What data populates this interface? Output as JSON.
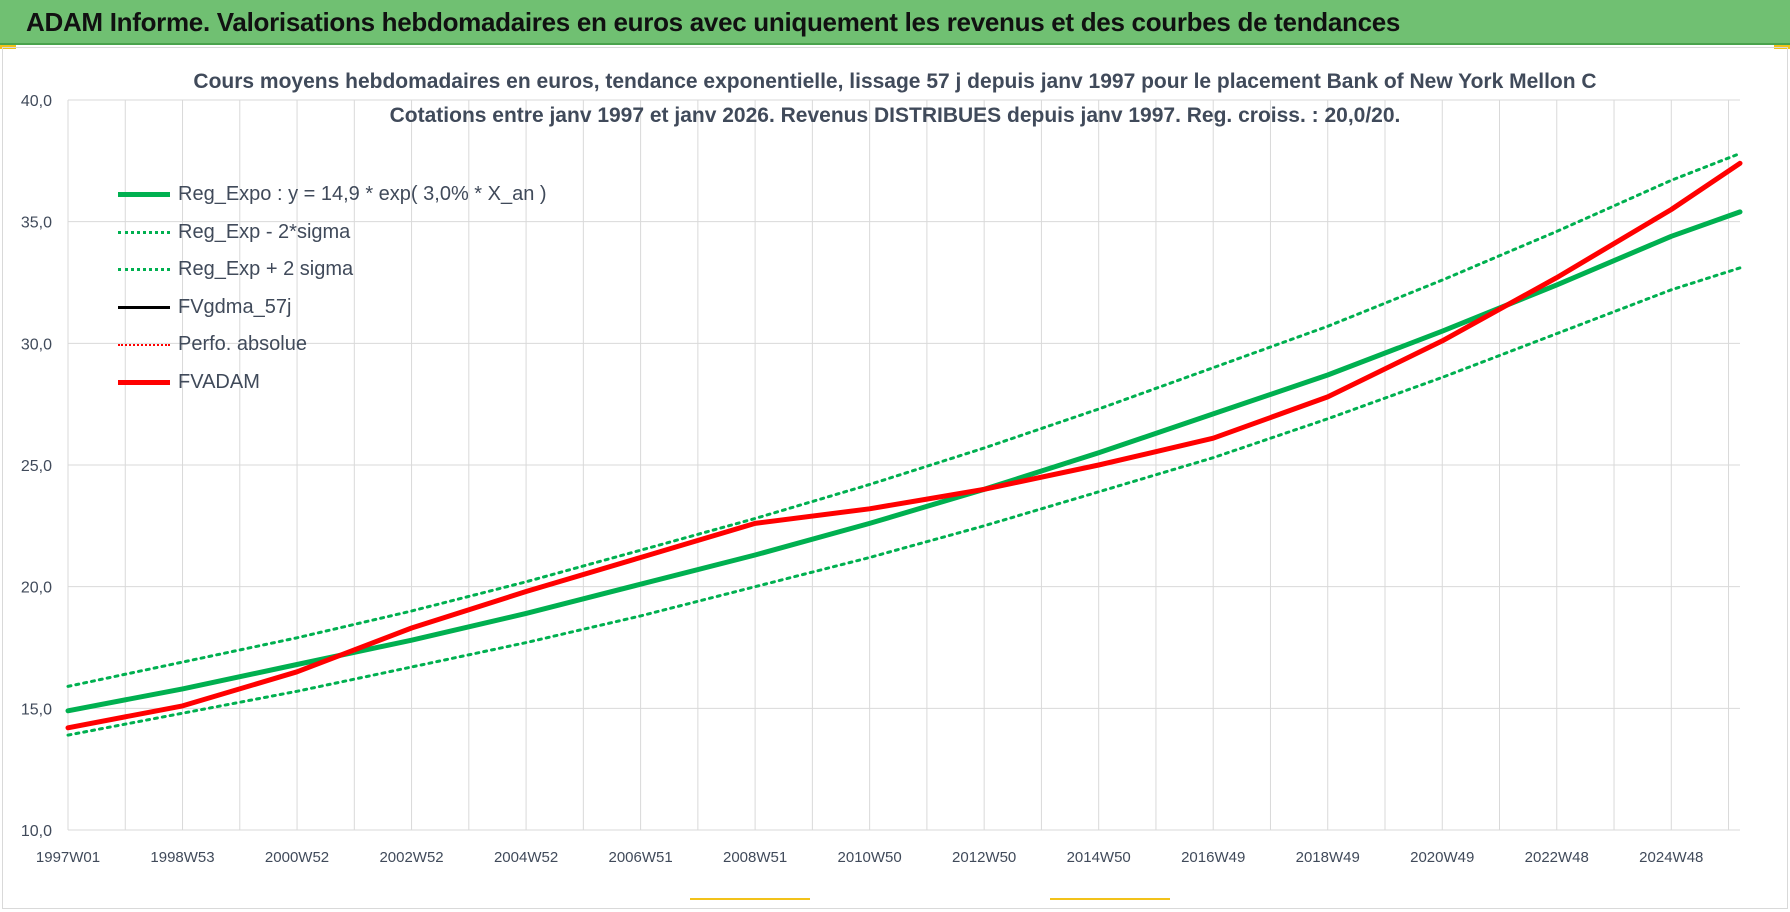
{
  "banner": {
    "title": "ADAM Informe. Valorisations hebdomadaires en euros avec uniquement les revenus et des courbes de tendances"
  },
  "colors": {
    "banner_bg": "#70c072",
    "accent_gold": "#f2c21a",
    "trend_green": "#00b050",
    "adam_red": "#ff0000",
    "black": "#000000",
    "grid": "#d9d9d9",
    "text": "#404a5a"
  },
  "chart_data": {
    "type": "line",
    "title": "Cours moyens hebdomadaires en euros, tendance exponentielle, lissage 57 j depuis janv 1997 pour le placement Bank of New York Mellon C",
    "subtitle": "Cotations entre janv 1997 et janv 2026. Revenus DISTRIBUES depuis janv 1997. Reg. croiss. : 20,0/20.",
    "xlabel": "",
    "ylabel": "",
    "ylim": [
      10,
      40
    ],
    "yticks": [
      "10,0",
      "15,0",
      "20,0",
      "25,0",
      "30,0",
      "35,0",
      "40,0"
    ],
    "xticks": [
      "1997W01",
      "1998W53",
      "2000W52",
      "2002W52",
      "2004W52",
      "2006W51",
      "2008W51",
      "2010W50",
      "2012W50",
      "2014W50",
      "2016W49",
      "2018W49",
      "2020W49",
      "2022W48",
      "2024W48"
    ],
    "xlim": [
      1997.0,
      2026.2
    ],
    "grid": true,
    "legend_position": "top-left",
    "series": [
      {
        "name": "Reg_Expo : y = 14,9 * exp( 3,0% *  X_an )",
        "style": "solid-thick",
        "color": "#00b050",
        "x": [
          1997.0,
          1999.0,
          2001.0,
          2003.0,
          2005.0,
          2007.0,
          2009.0,
          2011.0,
          2013.0,
          2015.0,
          2017.0,
          2019.0,
          2021.0,
          2023.0,
          2025.0,
          2026.2
        ],
        "values": [
          14.9,
          15.8,
          16.8,
          17.8,
          18.9,
          20.1,
          21.3,
          22.6,
          24.0,
          25.5,
          27.1,
          28.7,
          30.5,
          32.4,
          34.4,
          35.4
        ]
      },
      {
        "name": "Reg_Exp - 2*sigma",
        "style": "dotted",
        "color": "#00b050",
        "x": [
          1997.0,
          1999.0,
          2001.0,
          2003.0,
          2005.0,
          2007.0,
          2009.0,
          2011.0,
          2013.0,
          2015.0,
          2017.0,
          2019.0,
          2021.0,
          2023.0,
          2025.0,
          2026.2
        ],
        "values": [
          13.9,
          14.8,
          15.7,
          16.7,
          17.7,
          18.8,
          20.0,
          21.2,
          22.5,
          23.9,
          25.3,
          26.9,
          28.6,
          30.4,
          32.2,
          33.1
        ]
      },
      {
        "name": "Reg_Exp + 2 sigma",
        "style": "dotted",
        "color": "#00b050",
        "x": [
          1997.0,
          1999.0,
          2001.0,
          2003.0,
          2005.0,
          2007.0,
          2009.0,
          2011.0,
          2013.0,
          2015.0,
          2017.0,
          2019.0,
          2021.0,
          2023.0,
          2025.0,
          2026.2
        ],
        "values": [
          15.9,
          16.9,
          17.9,
          19.0,
          20.2,
          21.5,
          22.8,
          24.2,
          25.7,
          27.3,
          29.0,
          30.7,
          32.6,
          34.6,
          36.7,
          37.8
        ]
      },
      {
        "name": "FVgdma_57j",
        "style": "solid",
        "color": "#000000",
        "x": [],
        "values": []
      },
      {
        "name": "Perfo. absolue",
        "style": "dotted-thin",
        "color": "#ff0000",
        "x": [],
        "values": []
      },
      {
        "name": "FVADAM",
        "style": "solid-thick",
        "color": "#ff0000",
        "x": [
          1997.0,
          1999.0,
          2001.0,
          2003.0,
          2005.0,
          2007.0,
          2009.0,
          2011.0,
          2012.0,
          2013.0,
          2015.0,
          2017.0,
          2019.0,
          2021.0,
          2023.0,
          2025.0,
          2026.2
        ],
        "values": [
          14.2,
          15.1,
          16.5,
          18.3,
          19.8,
          21.2,
          22.6,
          23.2,
          23.6,
          24.0,
          25.0,
          26.1,
          27.8,
          30.1,
          32.7,
          35.5,
          37.4
        ]
      }
    ]
  }
}
